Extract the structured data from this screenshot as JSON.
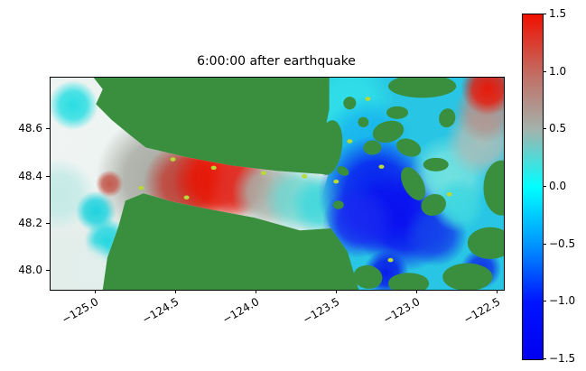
{
  "figure": {
    "title": "6:00:00 after earthquake",
    "background_color": "#ffffff"
  },
  "chart_data": {
    "type": "heatmap",
    "title": "6:00:00 after earthquake",
    "xlabel": "",
    "ylabel": "",
    "description": "Sea-surface displacement map of the Strait of Juan de Fuca / Salish Sea region six hours after an earthquake. Land is masked solid green. Water shows displacement: strong positive (red, ~+1.5) patch in the central strait and at the top-right corner, strong negative (deep blue, ~-1.0 to -1.5) in the eastern basin, near-zero (cyan/gray) elsewhere.",
    "x_tick_labels": [
      "−125.0",
      "−124.5",
      "−124.0",
      "−123.5",
      "−123.0",
      "−122.5"
    ],
    "x_tick_values": [
      -125.0,
      -124.5,
      -124.0,
      -123.5,
      -123.0,
      -122.5
    ],
    "x_range": [
      -125.28,
      -122.46
    ],
    "y_tick_labels": [
      "48.6",
      "48.4",
      "48.2",
      "48.0"
    ],
    "y_tick_values": [
      48.6,
      48.4,
      48.2,
      48.0
    ],
    "y_range": [
      47.92,
      48.82
    ],
    "grid": false,
    "colorbar": {
      "tick_labels": [
        "1.5",
        "1.0",
        "0.5",
        "0.0",
        "−0.5",
        "−1.0",
        "−1.5"
      ],
      "tick_values": [
        1.5,
        1.0,
        0.5,
        0.0,
        -0.5,
        -1.0,
        -1.5
      ],
      "range": [
        -1.5,
        1.5
      ],
      "stops": [
        {
          "p": 0.0,
          "c": "#f01000"
        },
        {
          "p": 0.167,
          "c": "#c46a60"
        },
        {
          "p": 0.333,
          "c": "#a4b2ac"
        },
        {
          "p": 0.5,
          "c": "#00ffff"
        },
        {
          "p": 0.667,
          "c": "#0096ff"
        },
        {
          "p": 0.833,
          "c": "#0014ff"
        },
        {
          "p": 1.0,
          "c": "#0000f0"
        }
      ]
    },
    "map": {
      "land_color": "#3a8f3f",
      "speckle_color": "#b9d934",
      "water_polygons": [
        {
          "base": "#e3edea",
          "pts": [
            [
              0.0,
              0.0
            ],
            [
              0.095,
              0.0
            ],
            [
              0.115,
              0.055
            ],
            [
              0.1,
              0.125
            ],
            [
              0.135,
              0.2
            ],
            [
              0.175,
              0.27
            ],
            [
              0.21,
              0.33
            ],
            [
              0.3,
              0.375
            ],
            [
              0.4,
              0.415
            ],
            [
              0.5,
              0.44
            ],
            [
              0.6,
              0.455
            ],
            [
              0.655,
              0.47
            ],
            [
              0.69,
              0.5
            ],
            [
              0.7,
              0.56
            ],
            [
              0.68,
              0.66
            ],
            [
              0.62,
              0.71
            ],
            [
              0.55,
              0.72
            ],
            [
              0.45,
              0.66
            ],
            [
              0.35,
              0.62
            ],
            [
              0.27,
              0.585
            ],
            [
              0.205,
              0.545
            ],
            [
              0.165,
              0.58
            ],
            [
              0.15,
              0.7
            ],
            [
              0.125,
              0.85
            ],
            [
              0.115,
              1.0
            ],
            [
              0.0,
              1.0
            ]
          ]
        },
        {
          "base": "#28c6e4",
          "pts": [
            [
              0.615,
              0.0
            ],
            [
              1.0,
              0.0
            ],
            [
              1.0,
              1.0
            ],
            [
              0.68,
              1.0
            ],
            [
              0.655,
              0.82
            ],
            [
              0.615,
              0.7
            ],
            [
              0.598,
              0.56
            ],
            [
              0.615,
              0.44
            ],
            [
              0.6,
              0.3
            ],
            [
              0.615,
              0.15
            ]
          ]
        }
      ],
      "blobs": [
        {
          "x": 0.03,
          "y": 0.3,
          "r": 0.22,
          "c": "#f0f5f3"
        },
        {
          "x": 0.05,
          "y": 0.13,
          "r": 0.055,
          "c": "#22dde2"
        },
        {
          "x": 0.02,
          "y": 0.55,
          "r": 0.08,
          "c": "#c2eae6"
        },
        {
          "x": 0.1,
          "y": 0.63,
          "r": 0.045,
          "c": "#18d2de"
        },
        {
          "x": 0.125,
          "y": 0.77,
          "r": 0.05,
          "c": "#20d6e0"
        },
        {
          "x": 0.09,
          "y": 0.9,
          "r": 0.06,
          "c": "#e2efec"
        },
        {
          "x": 0.24,
          "y": 0.47,
          "r": 0.14,
          "c": "#a6a8a0"
        },
        {
          "x": 0.13,
          "y": 0.5,
          "r": 0.03,
          "c": "#c4564a"
        },
        {
          "x": 0.3,
          "y": 0.5,
          "r": 0.095,
          "c": "#c23a30"
        },
        {
          "x": 0.37,
          "y": 0.475,
          "r": 0.1,
          "c": "#ea1200"
        },
        {
          "x": 0.42,
          "y": 0.5,
          "r": 0.075,
          "c": "#e03028"
        },
        {
          "x": 0.48,
          "y": 0.54,
          "r": 0.08,
          "c": "#a8b2aa"
        },
        {
          "x": 0.545,
          "y": 0.575,
          "r": 0.075,
          "c": "#70d8d2"
        },
        {
          "x": 0.6,
          "y": 0.6,
          "r": 0.07,
          "c": "#40d8dc"
        },
        {
          "x": 0.66,
          "y": 0.12,
          "r": 0.1,
          "c": "#30e0e8"
        },
        {
          "x": 0.7,
          "y": 0.3,
          "r": 0.1,
          "c": "#18b4ee"
        },
        {
          "x": 0.72,
          "y": 0.55,
          "r": 0.13,
          "c": "#0713f0"
        },
        {
          "x": 0.78,
          "y": 0.68,
          "r": 0.11,
          "c": "#0a0ef0"
        },
        {
          "x": 0.68,
          "y": 0.68,
          "r": 0.08,
          "c": "#1828f0"
        },
        {
          "x": 0.85,
          "y": 0.74,
          "r": 0.07,
          "c": "#1440ea"
        },
        {
          "x": 0.74,
          "y": 0.92,
          "r": 0.05,
          "c": "#0818e8"
        },
        {
          "x": 0.95,
          "y": 0.9,
          "r": 0.045,
          "c": "#1030e8"
        },
        {
          "x": 0.88,
          "y": 0.46,
          "r": 0.09,
          "c": "#74e2e0"
        },
        {
          "x": 0.9,
          "y": 0.6,
          "r": 0.06,
          "c": "#40d8e0"
        },
        {
          "x": 0.95,
          "y": 0.3,
          "r": 0.08,
          "c": "#a9bfba"
        },
        {
          "x": 0.96,
          "y": 0.16,
          "r": 0.07,
          "c": "#b3948e"
        },
        {
          "x": 0.965,
          "y": 0.05,
          "r": 0.06,
          "c": "#ea1505"
        }
      ],
      "islands": [
        {
          "x": 0.615,
          "y": 0.33,
          "rx": 0.028,
          "ry": 0.13,
          "rot": 8
        },
        {
          "x": 0.645,
          "y": 0.44,
          "rx": 0.014,
          "ry": 0.02,
          "rot": 30
        },
        {
          "x": 0.745,
          "y": 0.255,
          "rx": 0.035,
          "ry": 0.05,
          "rot": -15
        },
        {
          "x": 0.79,
          "y": 0.33,
          "rx": 0.028,
          "ry": 0.04,
          "rot": 20
        },
        {
          "x": 0.71,
          "y": 0.33,
          "rx": 0.02,
          "ry": 0.034,
          "rot": 0
        },
        {
          "x": 0.765,
          "y": 0.165,
          "rx": 0.024,
          "ry": 0.03,
          "rot": 0
        },
        {
          "x": 0.82,
          "y": 0.04,
          "rx": 0.075,
          "ry": 0.055,
          "rot": 0
        },
        {
          "x": 0.875,
          "y": 0.19,
          "rx": 0.018,
          "ry": 0.045,
          "rot": 15
        },
        {
          "x": 0.8,
          "y": 0.5,
          "rx": 0.022,
          "ry": 0.085,
          "rot": -28
        },
        {
          "x": 0.845,
          "y": 0.6,
          "rx": 0.028,
          "ry": 0.05,
          "rot": -20
        },
        {
          "x": 0.85,
          "y": 0.41,
          "rx": 0.028,
          "ry": 0.032,
          "rot": 0
        },
        {
          "x": 0.995,
          "y": 0.52,
          "rx": 0.04,
          "ry": 0.13,
          "rot": 0
        },
        {
          "x": 0.97,
          "y": 0.78,
          "rx": 0.05,
          "ry": 0.075,
          "rot": 0
        },
        {
          "x": 0.92,
          "y": 0.94,
          "rx": 0.055,
          "ry": 0.065,
          "rot": 0
        },
        {
          "x": 0.79,
          "y": 0.97,
          "rx": 0.045,
          "ry": 0.05,
          "rot": 0
        },
        {
          "x": 0.7,
          "y": 0.94,
          "rx": 0.032,
          "ry": 0.055,
          "rot": 10
        },
        {
          "x": 0.66,
          "y": 0.12,
          "rx": 0.014,
          "ry": 0.03,
          "rot": 25
        },
        {
          "x": 0.69,
          "y": 0.21,
          "rx": 0.012,
          "ry": 0.024,
          "rot": 15
        },
        {
          "x": 0.635,
          "y": 0.6,
          "rx": 0.012,
          "ry": 0.02,
          "rot": 0
        }
      ],
      "speckles": [
        {
          "x": 0.27,
          "y": 0.385
        },
        {
          "x": 0.36,
          "y": 0.425
        },
        {
          "x": 0.47,
          "y": 0.45
        },
        {
          "x": 0.56,
          "y": 0.465
        },
        {
          "x": 0.63,
          "y": 0.49
        },
        {
          "x": 0.2,
          "y": 0.52
        },
        {
          "x": 0.7,
          "y": 0.1
        },
        {
          "x": 0.73,
          "y": 0.42
        },
        {
          "x": 0.66,
          "y": 0.3
        },
        {
          "x": 0.88,
          "y": 0.55
        },
        {
          "x": 0.75,
          "y": 0.86
        },
        {
          "x": 0.3,
          "y": 0.565
        }
      ]
    }
  },
  "layout_colors": {
    "axes_edge": "#000000",
    "text": "#000000"
  }
}
